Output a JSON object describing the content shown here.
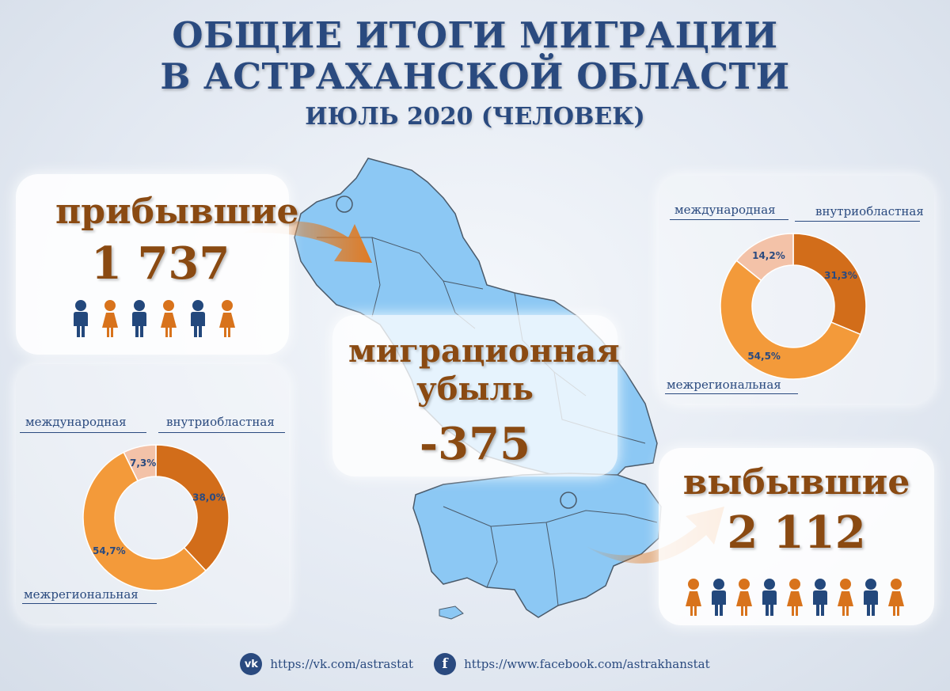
{
  "header": {
    "title_line1": "ОБЩИЕ ИТОГИ МИГРАЦИИ",
    "title_line2": "В АСТРАХАНСКОЙ ОБЛАСТИ",
    "subtitle": "ИЮЛЬ 2020 (ЧЕЛОВЕК)"
  },
  "arrivals": {
    "label": "прибывшие",
    "value": "1 737",
    "people_icons": 6
  },
  "departures": {
    "label": "выбывшие",
    "value": "2 112",
    "people_icons": 9
  },
  "net": {
    "label_line1": "миграционная",
    "label_line2": "убыль",
    "value": "-375"
  },
  "colors": {
    "title": "#2a4a7f",
    "number": "#8a4a12",
    "map_fill": "#8cc8f4",
    "map_border": "#4a5a6a",
    "arrow": "#e07a22",
    "person_blue": "#23487c",
    "person_orange": "#d8731c",
    "intra_regional": "#d26d1a",
    "interregional": "#f39a3a",
    "international": "#f3c2a8"
  },
  "chart_data": [
    {
      "type": "pie",
      "name": "arrivals_structure",
      "categories": [
        "внутриобластная",
        "межрегиональная",
        "международная"
      ],
      "values": [
        38.0,
        54.7,
        7.3
      ],
      "labels": [
        "38,0%",
        "54,7%",
        "7,3%"
      ]
    },
    {
      "type": "pie",
      "name": "departures_structure",
      "categories": [
        "внутриобластная",
        "межрегиональная",
        "международная"
      ],
      "values": [
        31.3,
        54.5,
        14.2
      ],
      "labels": [
        "31,3%",
        "54,5%",
        "14,2%"
      ]
    }
  ],
  "footer": {
    "vk_icon": "vk-icon",
    "vk_url": "https://vk.com/astrastat",
    "fb_icon": "facebook-icon",
    "fb_url": "https://www.facebook.com/astrakhanstat"
  }
}
